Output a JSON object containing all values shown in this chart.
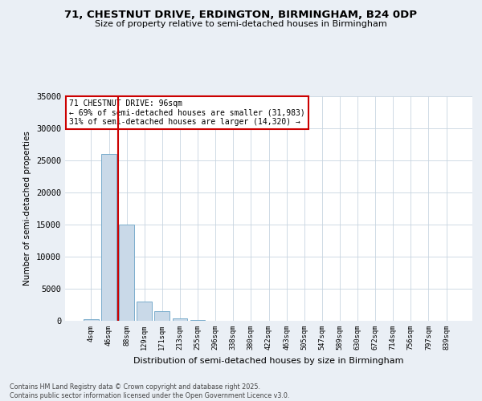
{
  "title_line1": "71, CHESTNUT DRIVE, ERDINGTON, BIRMINGHAM, B24 0DP",
  "title_line2": "Size of property relative to semi-detached houses in Birmingham",
  "xlabel": "Distribution of semi-detached houses by size in Birmingham",
  "ylabel": "Number of semi-detached properties",
  "categories": [
    "4sqm",
    "46sqm",
    "88sqm",
    "129sqm",
    "171sqm",
    "213sqm",
    "255sqm",
    "296sqm",
    "338sqm",
    "380sqm",
    "422sqm",
    "463sqm",
    "505sqm",
    "547sqm",
    "589sqm",
    "630sqm",
    "672sqm",
    "714sqm",
    "756sqm",
    "797sqm",
    "839sqm"
  ],
  "values": [
    300,
    26000,
    15000,
    3000,
    1500,
    400,
    150,
    50,
    20,
    10,
    5,
    3,
    2,
    1,
    1,
    0,
    0,
    0,
    0,
    0,
    0
  ],
  "bar_color": "#c9d9e8",
  "bar_edge_color": "#7aadcc",
  "vline_pos": 1.5,
  "vline_color": "#cc0000",
  "property_label": "71 CHESTNUT DRIVE: 96sqm",
  "pct_smaller": 69,
  "count_smaller": 31983,
  "pct_larger": 31,
  "count_larger": 14320,
  "annotation_box_color": "#cc0000",
  "ylim": [
    0,
    35000
  ],
  "yticks": [
    0,
    5000,
    10000,
    15000,
    20000,
    25000,
    30000,
    35000
  ],
  "footer": "Contains HM Land Registry data © Crown copyright and database right 2025.\nContains public sector information licensed under the Open Government Licence v3.0.",
  "bg_color": "#eaeff5",
  "plot_bg_color": "#ffffff",
  "grid_color": "#c8d4e0"
}
